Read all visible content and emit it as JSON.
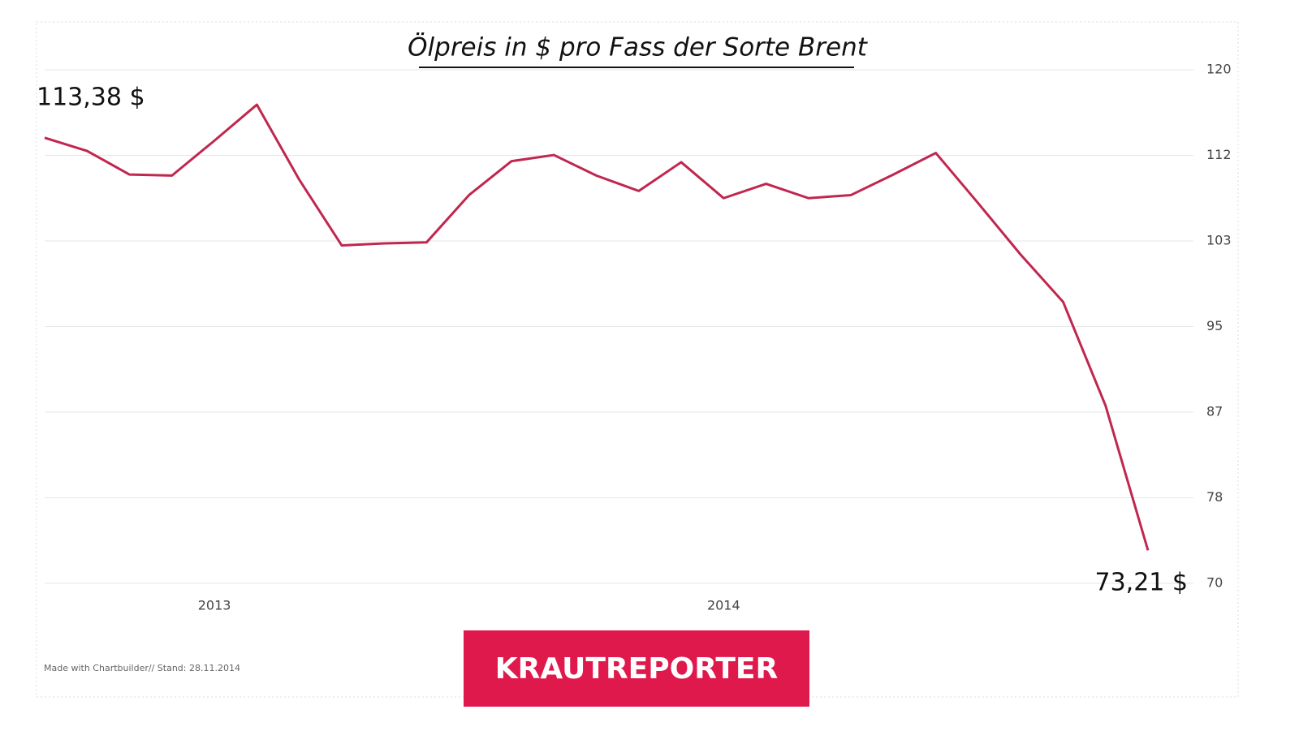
{
  "chart_data": {
    "type": "line",
    "title": "Ölpreis in $ pro Fass der Sorte Brent",
    "categories": [
      null,
      null,
      null,
      null,
      "2013",
      null,
      null,
      null,
      null,
      null,
      null,
      null,
      null,
      null,
      null,
      null,
      "2014",
      null,
      null,
      null,
      null,
      null,
      null,
      null,
      null,
      null,
      null
    ],
    "values": [
      113.38,
      112.1,
      109.8,
      109.7,
      113.1,
      116.6,
      109.3,
      102.9,
      103.1,
      103.2,
      107.8,
      111.1,
      111.7,
      109.7,
      108.2,
      111.0,
      107.5,
      108.9,
      107.5,
      107.8,
      109.8,
      111.9,
      107.0,
      102.0,
      97.4,
      87.3,
      73.21
    ],
    "value_labels": [
      "113,38 $",
      null,
      null,
      null,
      null,
      null,
      null,
      null,
      null,
      null,
      null,
      null,
      null,
      null,
      null,
      null,
      null,
      null,
      null,
      null,
      null,
      null,
      null,
      null,
      null,
      null,
      "73,21 $"
    ],
    "color": "#c0274f",
    "ylim": [
      70,
      120
    ],
    "yticks": [
      70,
      {
        "value": 78.33,
        "label": "78"
      },
      {
        "value": 86.67,
        "label": "87"
      },
      95,
      {
        "value": 103.33,
        "label": "103"
      },
      {
        "value": 111.67,
        "label": "112"
      },
      120
    ],
    "grid": true,
    "source": "Made with Chartbuilder// Stand: 28.11.2014",
    "logo": "KRAUTREPORTER"
  }
}
